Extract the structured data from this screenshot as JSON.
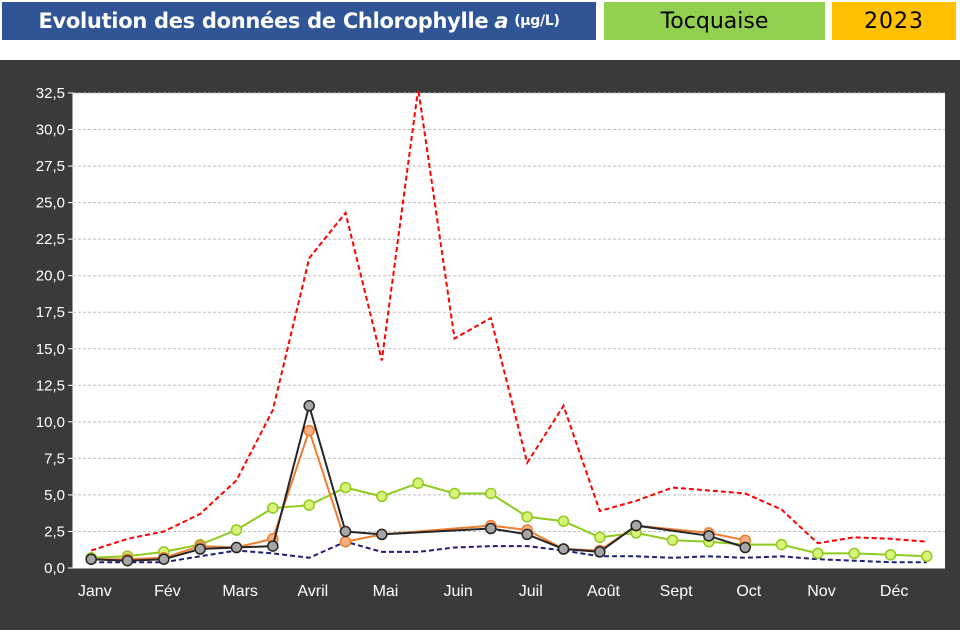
{
  "header": {
    "title_main": "Evolution des données de Chlorophylle",
    "title_italic": "a",
    "title_unit": "(µg/L)",
    "site": "Tocquaise",
    "year": "2023"
  },
  "colors": {
    "title_bg": "#2f5597",
    "site_bg": "#92d050",
    "year_bg": "#ffc000",
    "frame_bg": "#3a3a3a",
    "plot_bg": "#ffffff",
    "grid": "#bfbfbf"
  },
  "chart_data": {
    "type": "line",
    "title": "",
    "xlabel": "",
    "ylabel": "",
    "ylim": [
      0,
      32.5
    ],
    "y_ticks": [
      "0,0",
      "2,5",
      "5,0",
      "7,5",
      "10,0",
      "12,5",
      "15,0",
      "17,5",
      "20,0",
      "22,5",
      "25,0",
      "27,5",
      "30,0",
      "32,5"
    ],
    "x_range": [
      0,
      12
    ],
    "months": [
      "Janv",
      "Fév",
      "Mars",
      "Avril",
      "Mai",
      "Juin",
      "Juil",
      "Août",
      "Sept",
      "Oct",
      "Nov",
      "Déc"
    ],
    "grid": "horizontal",
    "series": [
      {
        "color": "#ff0000",
        "style": "dashed",
        "markers": false,
        "x": [
          0.25,
          0.75,
          1.25,
          1.75,
          2.25,
          2.75,
          3.25,
          3.75,
          4.25,
          4.75,
          5.25,
          5.75,
          6.25,
          6.75,
          7.25,
          7.75,
          8.25,
          8.75,
          9.25,
          9.75,
          10.25,
          10.75,
          11.25,
          11.75
        ],
        "y": [
          1.2,
          2.0,
          2.5,
          3.7,
          6.0,
          10.8,
          21.2,
          24.3,
          14.2,
          32.8,
          15.7,
          17.1,
          7.2,
          11.1,
          3.9,
          4.6,
          5.5,
          5.3,
          5.1,
          4.0,
          1.7,
          2.1,
          2.0,
          1.8
        ]
      },
      {
        "color": "#1f1f7a",
        "style": "dashed",
        "markers": false,
        "x": [
          0.25,
          0.75,
          1.25,
          1.75,
          2.25,
          2.75,
          3.25,
          3.75,
          4.25,
          4.75,
          5.25,
          5.75,
          6.25,
          6.75,
          7.25,
          7.75,
          8.25,
          8.75,
          9.25,
          9.75,
          10.25,
          10.75,
          11.25,
          11.75
        ],
        "y": [
          0.4,
          0.4,
          0.4,
          0.8,
          1.2,
          1.0,
          0.7,
          1.8,
          1.1,
          1.1,
          1.4,
          1.5,
          1.5,
          1.2,
          0.8,
          0.8,
          0.7,
          0.8,
          0.7,
          0.8,
          0.6,
          0.5,
          0.4,
          0.4
        ]
      },
      {
        "color": "#8fcb1f",
        "markerFill": "#d9f27a",
        "style": "solid",
        "markers": true,
        "x": [
          0.25,
          0.75,
          1.25,
          1.75,
          2.25,
          2.75,
          3.25,
          3.75,
          4.25,
          4.75,
          5.25,
          5.75,
          6.25,
          6.75,
          7.25,
          7.75,
          8.25,
          8.75,
          9.25,
          9.75,
          10.25,
          10.75,
          11.25,
          11.75
        ],
        "y": [
          0.7,
          0.8,
          1.1,
          1.6,
          2.6,
          4.1,
          4.3,
          5.5,
          4.9,
          5.8,
          5.1,
          5.1,
          3.5,
          3.2,
          2.1,
          2.4,
          1.9,
          1.8,
          1.6,
          1.6,
          1.0,
          1.0,
          0.9,
          0.8
        ]
      },
      {
        "color": "#ed7d31",
        "markerFill": "#f4b183",
        "style": "solid",
        "markers": true,
        "x": [
          0.25,
          0.75,
          1.25,
          1.75,
          2.25,
          2.75,
          3.25,
          3.75,
          4.25,
          5.75,
          6.25,
          6.75,
          7.25,
          7.75,
          8.75,
          9.25
        ],
        "y": [
          0.6,
          0.6,
          0.7,
          1.5,
          1.4,
          2.0,
          9.4,
          1.8,
          2.3,
          2.9,
          2.6,
          1.3,
          1.2,
          2.9,
          2.4,
          1.9
        ]
      },
      {
        "color": "#262626",
        "markerFill": "#a6a6a6",
        "style": "solid",
        "markers": true,
        "x": [
          0.25,
          0.75,
          1.25,
          1.75,
          2.25,
          2.75,
          3.25,
          3.75,
          4.25,
          5.75,
          6.25,
          6.75,
          7.25,
          7.75,
          8.75,
          9.25
        ],
        "y": [
          0.6,
          0.5,
          0.6,
          1.3,
          1.4,
          1.5,
          11.1,
          2.5,
          2.3,
          2.7,
          2.3,
          1.3,
          1.1,
          2.9,
          2.2,
          1.4
        ]
      }
    ]
  }
}
